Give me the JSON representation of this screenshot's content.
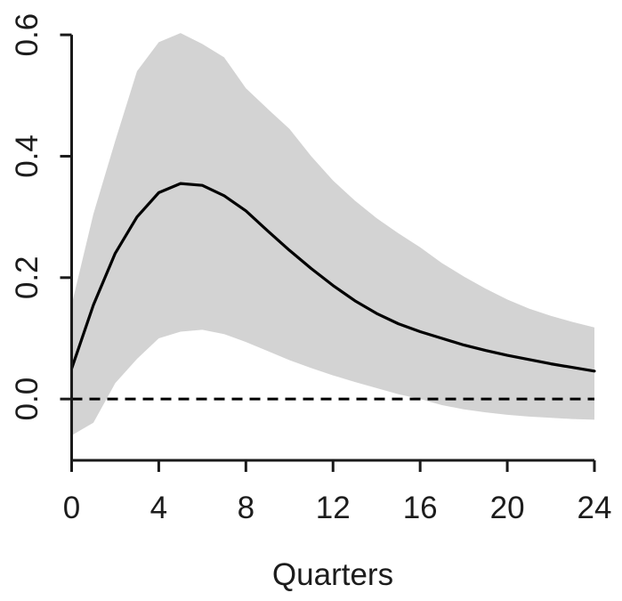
{
  "chart_data": {
    "type": "area",
    "title": "",
    "xlabel": "Quarters",
    "ylabel": "",
    "x": [
      0,
      1,
      2,
      3,
      4,
      5,
      6,
      7,
      8,
      9,
      10,
      11,
      12,
      13,
      14,
      15,
      16,
      17,
      18,
      19,
      20,
      21,
      22,
      23,
      24
    ],
    "series": [
      {
        "name": "point-estimate",
        "style": "solid-line",
        "values": [
          0.05,
          0.155,
          0.24,
          0.3,
          0.34,
          0.355,
          0.352,
          0.335,
          0.31,
          0.277,
          0.245,
          0.215,
          0.187,
          0.162,
          0.141,
          0.124,
          0.111,
          0.1,
          0.089,
          0.08,
          0.072,
          0.065,
          0.058,
          0.052,
          0.046
        ]
      },
      {
        "name": "confidence-band-upper",
        "style": "band-edge",
        "values": [
          0.155,
          0.305,
          0.425,
          0.54,
          0.588,
          0.603,
          0.585,
          0.563,
          0.512,
          0.478,
          0.445,
          0.4,
          0.36,
          0.327,
          0.298,
          0.273,
          0.25,
          0.224,
          0.202,
          0.182,
          0.164,
          0.149,
          0.137,
          0.127,
          0.118
        ]
      },
      {
        "name": "confidence-band-lower",
        "style": "band-edge",
        "values": [
          -0.06,
          -0.039,
          0.026,
          0.066,
          0.1,
          0.111,
          0.114,
          0.107,
          0.094,
          0.079,
          0.064,
          0.051,
          0.039,
          0.028,
          0.018,
          0.008,
          0.0,
          -0.01,
          -0.017,
          -0.022,
          -0.026,
          -0.029,
          -0.031,
          -0.033,
          -0.034
        ]
      }
    ],
    "zero_line": {
      "y": 0,
      "style": "dashed"
    },
    "x_ticks": [
      "0",
      "4",
      "8",
      "12",
      "16",
      "20",
      "24"
    ],
    "y_ticks": [
      "0.0",
      "0.2",
      "0.4",
      "0.6"
    ],
    "xlim": [
      0,
      24
    ],
    "ylim": [
      -0.101,
      0.609
    ],
    "grid": false,
    "legend": "none",
    "colors": {
      "band": "#d3d3d3",
      "line": "#000000",
      "axis": "#1a1a1a",
      "text": "#1c1c1c",
      "background": "#ffffff"
    }
  }
}
